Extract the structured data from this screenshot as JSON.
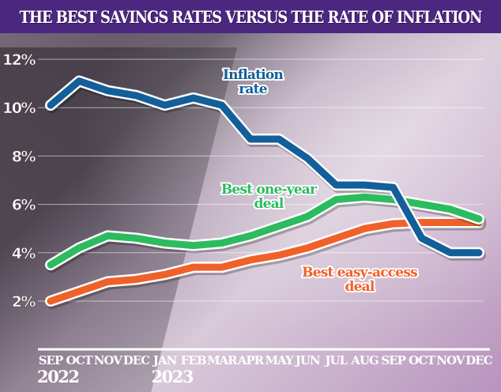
{
  "chart_data": {
    "type": "line",
    "title": "THE BEST SAVINGS RATES VERSUS THE RATE OF INFLATION",
    "xlabel": "",
    "ylabel": "",
    "categories": [
      "SEP",
      "OCT",
      "NOV",
      "DEC",
      "JAN",
      "FEB",
      "MAR",
      "APR",
      "MAY",
      "JUN",
      "JUL",
      "AUG",
      "SEP",
      "OCT",
      "NOV",
      "DEC"
    ],
    "year_labels": [
      {
        "index": 0,
        "label": "2022"
      },
      {
        "index": 4,
        "label": "2023"
      }
    ],
    "yticks": [
      {
        "value": 2,
        "label": "2%"
      },
      {
        "value": 4,
        "label": "4%"
      },
      {
        "value": 6,
        "label": "6%"
      },
      {
        "value": 8,
        "label": "8%"
      },
      {
        "value": 10,
        "label": "10%"
      },
      {
        "value": 12,
        "label": "12%"
      }
    ],
    "ylim": [
      2,
      12
    ],
    "grid": true,
    "series": [
      {
        "name": "Inflation rate",
        "label_lines": [
          "Inflation",
          "rate"
        ],
        "color": "#135f99",
        "values": [
          10.1,
          11.1,
          10.7,
          10.5,
          10.1,
          10.4,
          10.1,
          8.7,
          8.7,
          7.9,
          6.8,
          6.8,
          6.7,
          4.6,
          4.0,
          4.0
        ]
      },
      {
        "name": "Best one-year deal",
        "label_lines": [
          "Best one-year",
          "deal"
        ],
        "color": "#2dbb5f",
        "values": [
          3.5,
          4.2,
          4.7,
          4.6,
          4.4,
          4.3,
          4.4,
          4.7,
          5.1,
          5.5,
          6.2,
          6.3,
          6.2,
          6.0,
          5.8,
          5.4
        ]
      },
      {
        "name": "Best easy-access deal",
        "label_lines": [
          "Best easy-access",
          "deal"
        ],
        "color": "#f0612a",
        "values": [
          2.0,
          2.4,
          2.8,
          2.9,
          3.1,
          3.4,
          3.4,
          3.7,
          3.9,
          4.2,
          4.6,
          5.0,
          5.2,
          5.25,
          5.25,
          5.25
        ]
      }
    ]
  }
}
